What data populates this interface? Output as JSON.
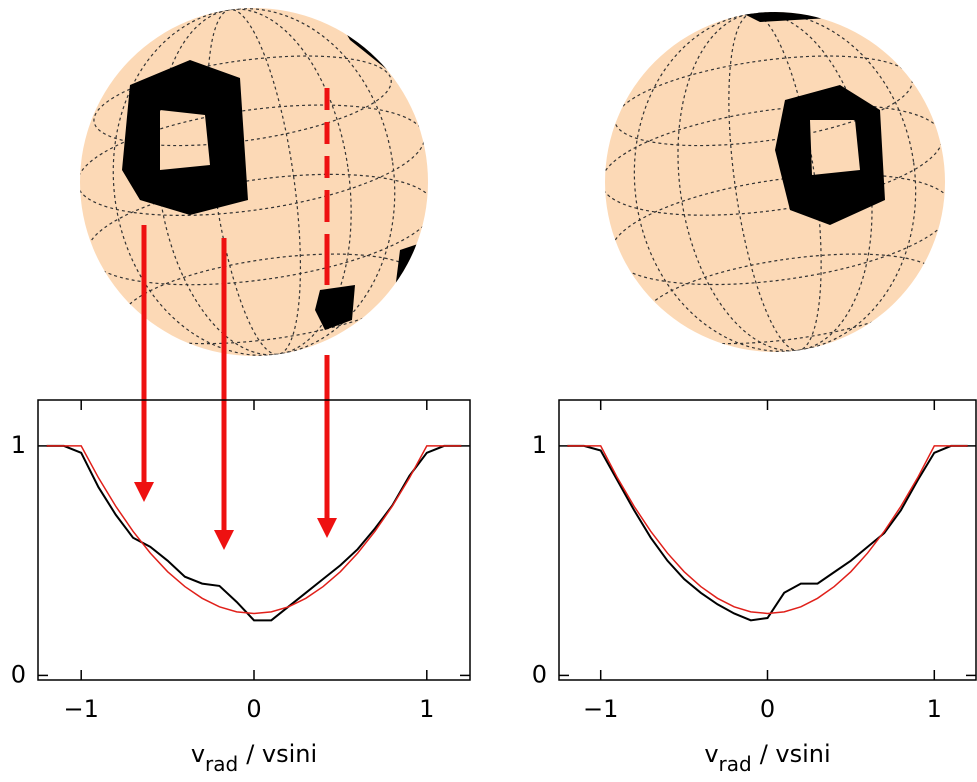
{
  "chart_data": [
    {
      "type": "line",
      "xlabel": {
        "main": "v",
        "sub": "rad",
        "rest": "/ vsini"
      },
      "xlim": [
        -1.25,
        1.25
      ],
      "ylim": [
        -0.02,
        1.2
      ],
      "xticks": [
        {
          "value": -1,
          "label": "−1"
        },
        0,
        1
      ],
      "yticks": [
        0,
        1
      ],
      "x": [
        -1.2,
        -1.1,
        -1.0,
        -0.9,
        -0.8,
        -0.7,
        -0.6,
        -0.5,
        -0.4,
        -0.3,
        -0.2,
        -0.1,
        0,
        0.1,
        0.2,
        0.3,
        0.4,
        0.5,
        0.6,
        0.7,
        0.8,
        0.9,
        1.0,
        1.1,
        1.2
      ],
      "series": [
        {
          "color": "#000000",
          "values": [
            1,
            1,
            0.97,
            0.82,
            0.7,
            0.6,
            0.56,
            0.5,
            0.43,
            0.4,
            0.39,
            0.32,
            0.24,
            0.24,
            0.3,
            0.36,
            0.42,
            0.48,
            0.55,
            0.64,
            0.74,
            0.87,
            0.97,
            1,
            1
          ]
        },
        {
          "color": "#e0201a",
          "values": [
            1,
            1,
            1,
            0.861,
            0.737,
            0.628,
            0.533,
            0.452,
            0.387,
            0.336,
            0.299,
            0.277,
            0.27,
            0.277,
            0.299,
            0.336,
            0.387,
            0.452,
            0.533,
            0.628,
            0.737,
            0.861,
            1,
            1,
            1
          ]
        }
      ]
    },
    {
      "type": "line",
      "xlabel": {
        "main": "v",
        "sub": "rad",
        "rest": "/ vsini"
      },
      "xlim": [
        -1.25,
        1.25
      ],
      "ylim": [
        -0.02,
        1.2
      ],
      "xticks": [
        {
          "value": -1,
          "label": "−1"
        },
        0,
        1
      ],
      "yticks": [
        0,
        1
      ],
      "x": [
        -1.2,
        -1.1,
        -1.0,
        -0.9,
        -0.8,
        -0.7,
        -0.6,
        -0.5,
        -0.4,
        -0.3,
        -0.2,
        -0.1,
        0,
        0.1,
        0.2,
        0.3,
        0.4,
        0.5,
        0.6,
        0.7,
        0.8,
        0.9,
        1.0,
        1.1,
        1.2
      ],
      "series": [
        {
          "color": "#000000",
          "values": [
            1,
            1,
            0.98,
            0.85,
            0.72,
            0.6,
            0.5,
            0.42,
            0.36,
            0.31,
            0.27,
            0.24,
            0.25,
            0.36,
            0.4,
            0.4,
            0.45,
            0.5,
            0.56,
            0.62,
            0.72,
            0.85,
            0.97,
            1,
            1
          ]
        },
        {
          "color": "#e0201a",
          "values": [
            1,
            1,
            1,
            0.861,
            0.737,
            0.628,
            0.533,
            0.452,
            0.387,
            0.336,
            0.299,
            0.277,
            0.27,
            0.277,
            0.299,
            0.336,
            0.387,
            0.452,
            0.533,
            0.628,
            0.737,
            0.861,
            1,
            1,
            1
          ]
        }
      ]
    }
  ]
}
